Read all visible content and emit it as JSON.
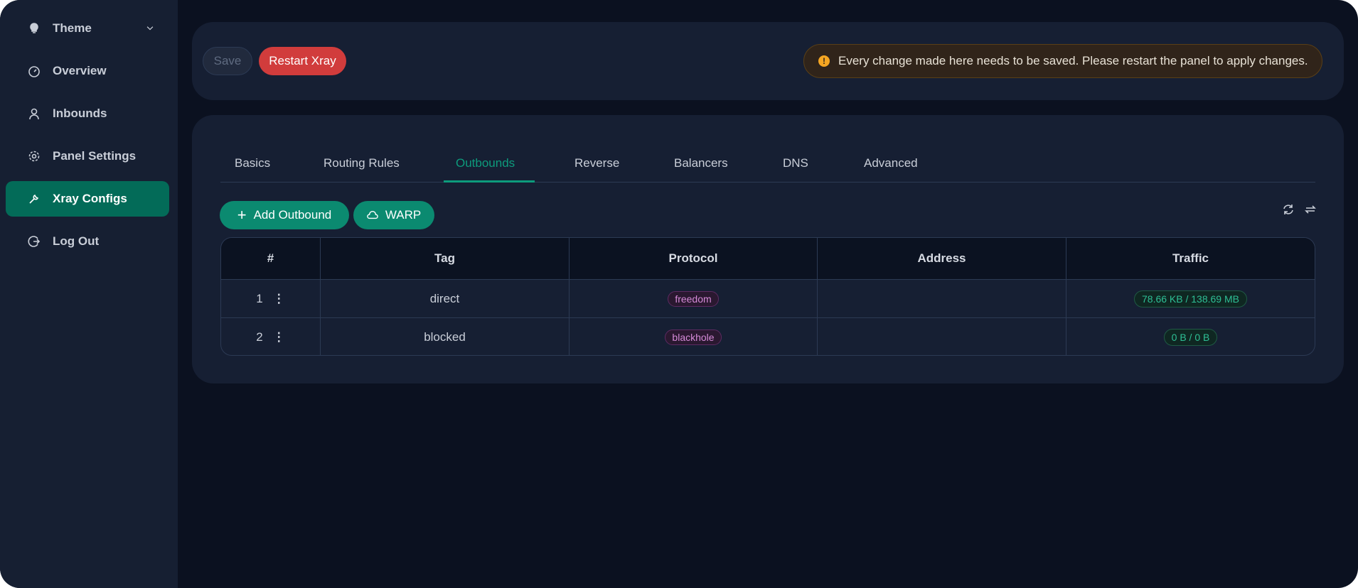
{
  "sidebar": {
    "items": [
      {
        "label": "Theme",
        "icon": "bulb-icon"
      },
      {
        "label": "Overview",
        "icon": "dashboard-icon"
      },
      {
        "label": "Inbounds",
        "icon": "user-icon"
      },
      {
        "label": "Panel Settings",
        "icon": "gear-icon"
      },
      {
        "label": "Xray Configs",
        "icon": "tool-icon",
        "active": true
      },
      {
        "label": "Log Out",
        "icon": "logout-icon"
      }
    ]
  },
  "toolbar": {
    "save_label": "Save",
    "restart_label": "Restart Xray",
    "alert": "Every change made here needs to be saved. Please restart the panel to apply changes."
  },
  "tabs": [
    "Basics",
    "Routing Rules",
    "Outbounds",
    "Reverse",
    "Balancers",
    "DNS",
    "Advanced"
  ],
  "active_tab": "Outbounds",
  "actions": {
    "add_outbound": "Add Outbound",
    "warp": "WARP"
  },
  "table": {
    "headers": [
      "#",
      "Tag",
      "Protocol",
      "Address",
      "Traffic"
    ],
    "rows": [
      {
        "index": "1",
        "tag": "direct",
        "protocol": "freedom",
        "address": "",
        "traffic": "78.66 KB / 138.69 MB"
      },
      {
        "index": "2",
        "tag": "blocked",
        "protocol": "blackhole",
        "address": "",
        "traffic": "0 B / 0 B"
      }
    ]
  },
  "colors": {
    "accent": "#0d9b7c",
    "active_nav": "#036b58",
    "danger": "#d13c3c",
    "warning": "#f5a623"
  }
}
